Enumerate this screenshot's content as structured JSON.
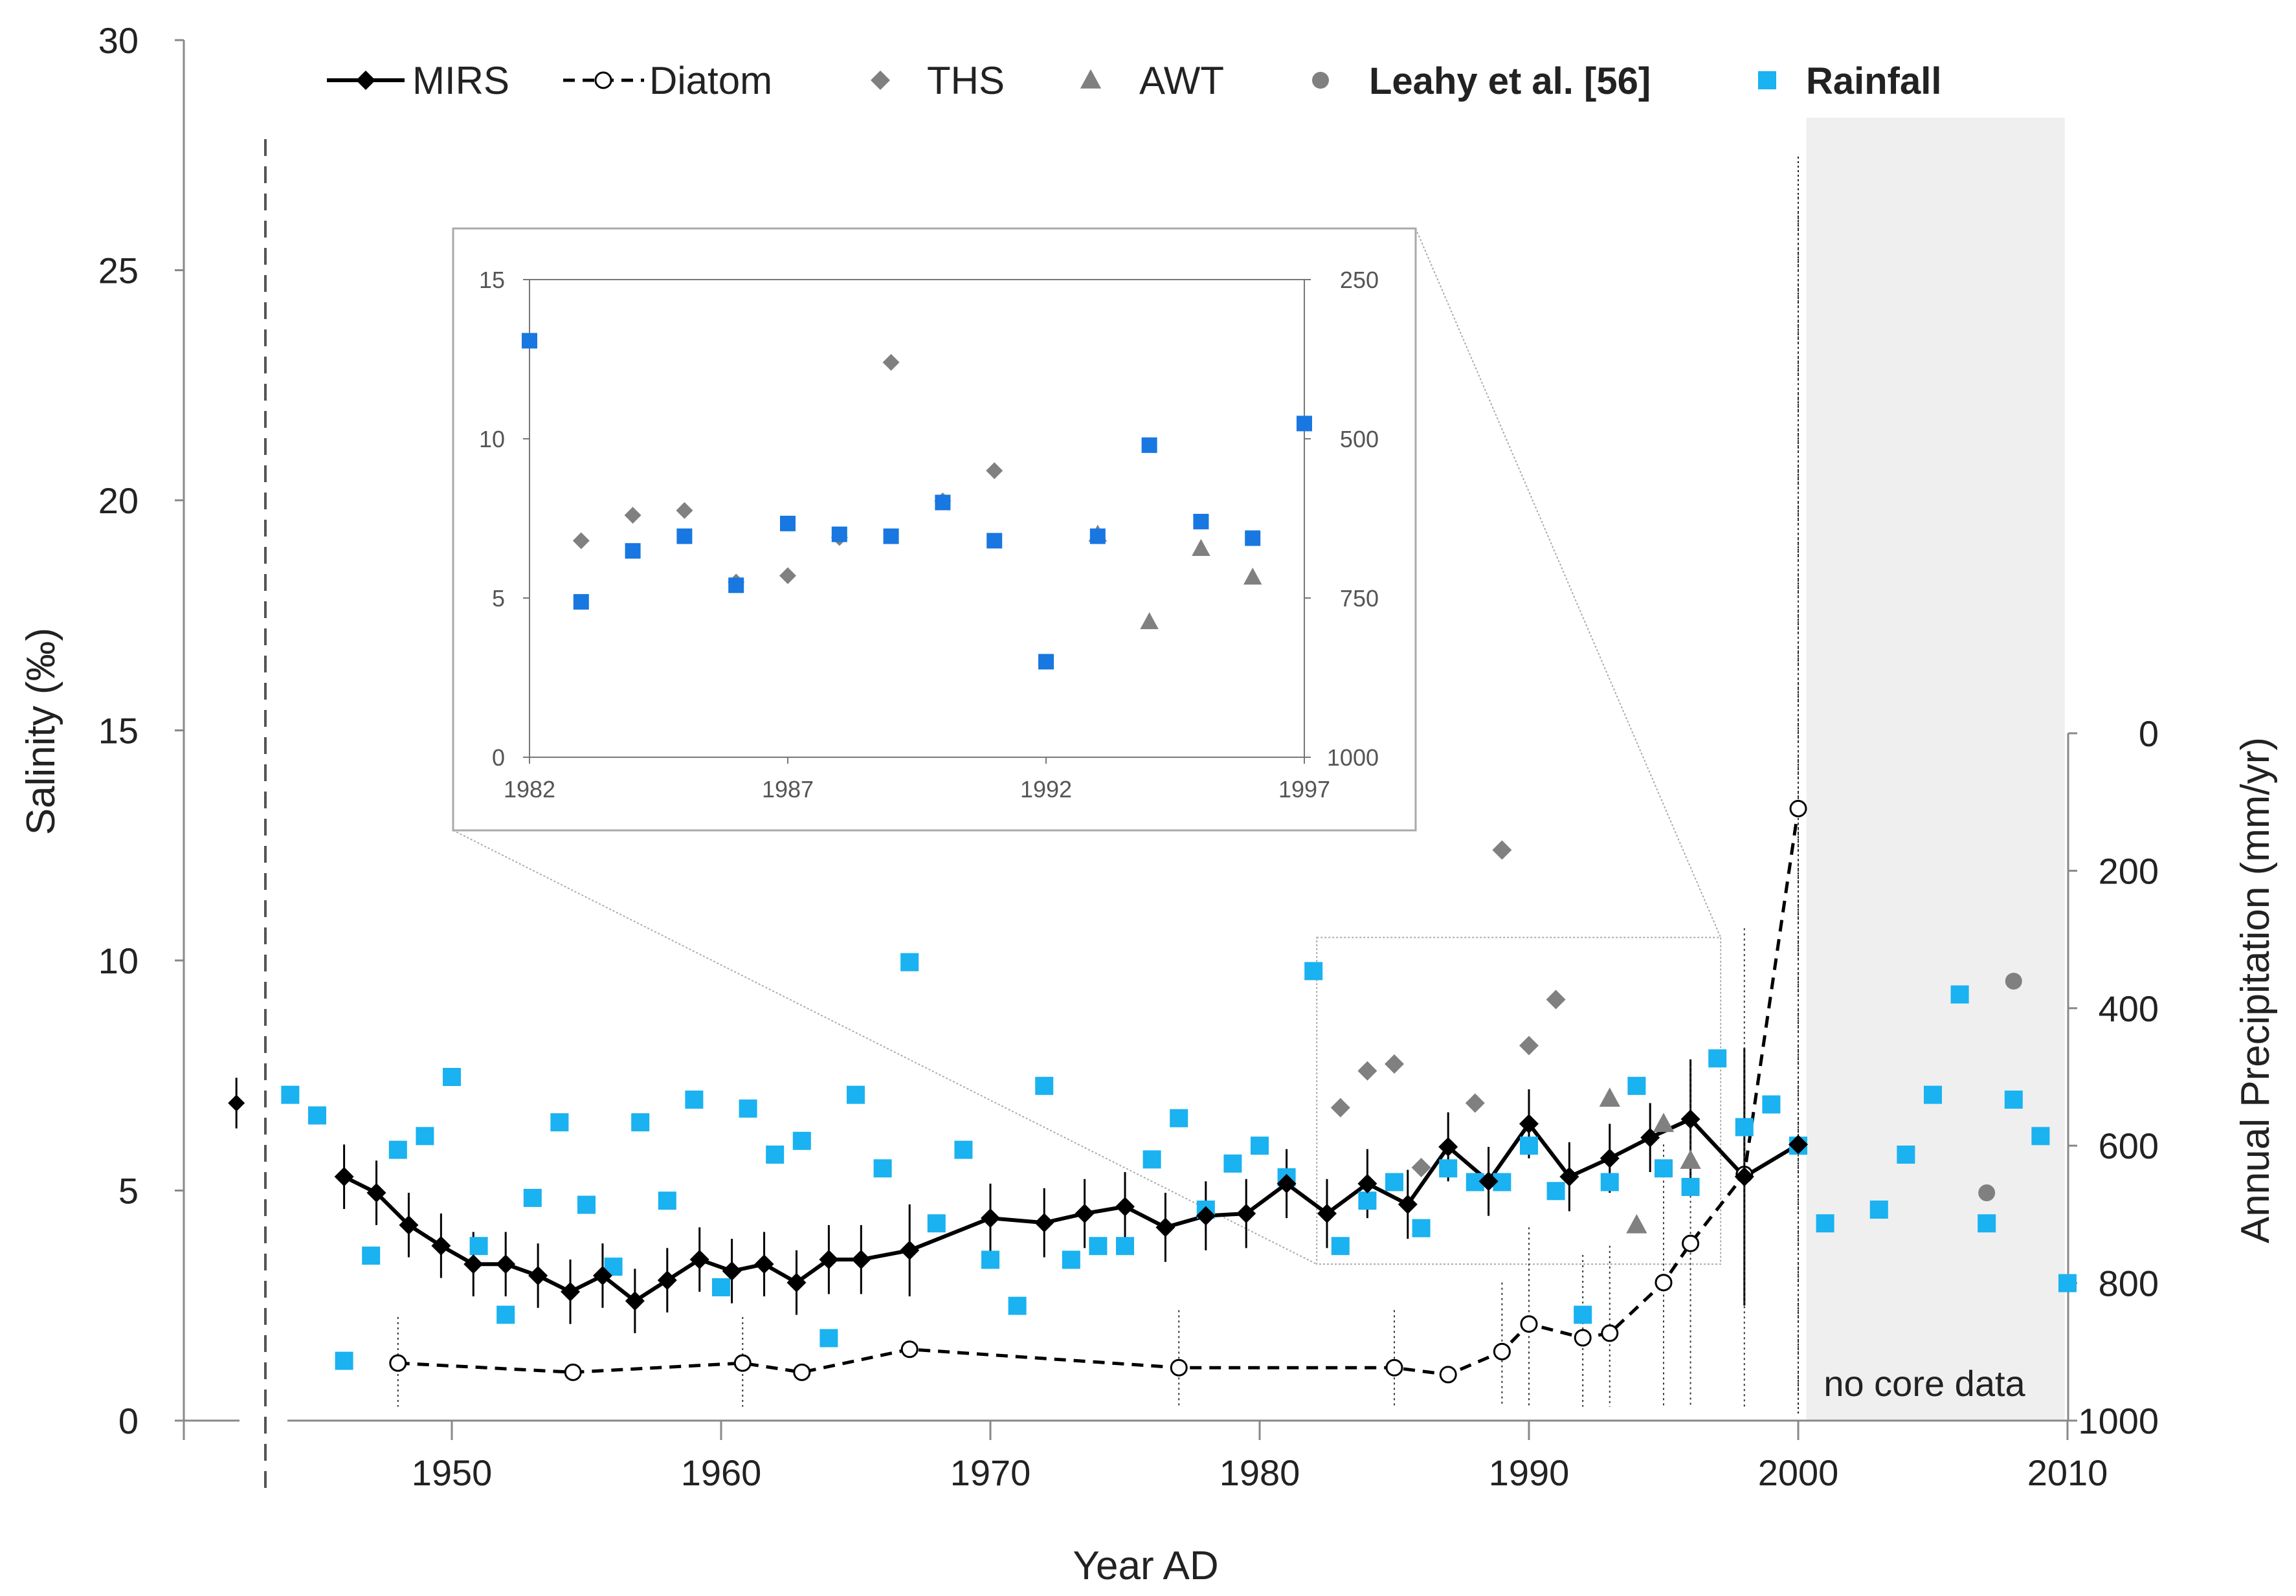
{
  "colors": {
    "mirs": "#000000",
    "diatom": "#000000",
    "ths": "#808080",
    "awt": "#808080",
    "leahy": "#808080",
    "rainfall_main": "#1ab2f0",
    "rainfall_inset": "#1877e0",
    "shade": "#efefef"
  },
  "chart_data": [
    {
      "id": "main",
      "type": "scatter",
      "title": "",
      "xlabel": "Year AD",
      "ylabel": "Salinity (‰)",
      "y2label": "Annual Precipitation (mm/yr)",
      "xlim": [
        1940,
        2010
      ],
      "ylim": [
        0,
        30
      ],
      "y2lim": [
        1000,
        0
      ],
      "x_ticks": [
        1950,
        1960,
        1970,
        1980,
        1990,
        2000,
        2010
      ],
      "y_ticks": [
        0,
        5,
        10,
        15,
        20,
        25,
        30
      ],
      "y2_ticks": [
        0,
        200,
        400,
        600,
        800,
        1000
      ],
      "annotation": "no core data",
      "shaded_region": [
        2000.3,
        2009.9
      ],
      "legend": [
        "MIRS",
        "Diatom",
        "THS",
        "AWT",
        "Leahy et al. [56]",
        "Rainfall"
      ],
      "series": [
        {
          "name": "MIRS",
          "marker": "diamond",
          "line": "solid",
          "values": [
            [
              1946,
              5.3
            ],
            [
              1947.2,
              4.95
            ],
            [
              1948.4,
              4.25
            ],
            [
              1949.6,
              3.8
            ],
            [
              1950.8,
              3.4
            ],
            [
              1952,
              3.4
            ],
            [
              1953.2,
              3.15
            ],
            [
              1954.4,
              2.8
            ],
            [
              1955.6,
              3.15
            ],
            [
              1956.8,
              2.6
            ],
            [
              1958,
              3.05
            ],
            [
              1959.2,
              3.5
            ],
            [
              1960.4,
              3.25
            ],
            [
              1961.6,
              3.4
            ],
            [
              1962.8,
              3.0
            ],
            [
              1964,
              3.5
            ],
            [
              1965.2,
              3.5
            ],
            [
              1967,
              3.7
            ],
            [
              1970,
              4.4
            ],
            [
              1972,
              4.3
            ],
            [
              1973.5,
              4.5
            ],
            [
              1975,
              4.65
            ],
            [
              1976.5,
              4.2
            ],
            [
              1978,
              4.45
            ],
            [
              1979.5,
              4.5
            ],
            [
              1981,
              5.15
            ],
            [
              1982.5,
              4.5
            ],
            [
              1984,
              5.15
            ],
            [
              1985.5,
              4.7
            ],
            [
              1987,
              5.95
            ],
            [
              1988.5,
              5.2
            ],
            [
              1990,
              6.45
            ],
            [
              1991.5,
              5.3
            ],
            [
              1993,
              5.7
            ],
            [
              1994.5,
              6.15
            ],
            [
              1996,
              6.55
            ],
            [
              1998,
              5.3
            ],
            [
              2000,
              6.0
            ]
          ],
          "isolated_point": [
            1942,
            6.9
          ],
          "error_bars": [
            [
              1946,
              0.7
            ],
            [
              1947.2,
              0.7
            ],
            [
              1948.4,
              0.7
            ],
            [
              1949.6,
              0.7
            ],
            [
              1950.8,
              0.7
            ],
            [
              1952,
              0.7
            ],
            [
              1953.2,
              0.7
            ],
            [
              1954.4,
              0.7
            ],
            [
              1955.6,
              0.7
            ],
            [
              1956.8,
              0.7
            ],
            [
              1958,
              0.7
            ],
            [
              1959.2,
              0.7
            ],
            [
              1960.4,
              0.7
            ],
            [
              1961.6,
              0.7
            ],
            [
              1962.8,
              0.7
            ],
            [
              1964,
              0.75
            ],
            [
              1965.2,
              0.75
            ],
            [
              1967,
              1.0
            ],
            [
              1970,
              0.75
            ],
            [
              1972,
              0.75
            ],
            [
              1973.5,
              0.75
            ],
            [
              1975,
              0.75
            ],
            [
              1976.5,
              0.75
            ],
            [
              1978,
              0.75
            ],
            [
              1979.5,
              0.75
            ],
            [
              1981,
              0.75
            ],
            [
              1982.5,
              0.75
            ],
            [
              1984,
              0.75
            ],
            [
              1985.5,
              0.75
            ],
            [
              1987,
              0.75
            ],
            [
              1988.5,
              0.75
            ],
            [
              1990,
              0.75
            ],
            [
              1991.5,
              0.75
            ],
            [
              1993,
              0.75
            ],
            [
              1994.5,
              0.75
            ],
            [
              1996,
              1.3
            ],
            [
              1998,
              2.8
            ],
            [
              2000,
              0.0
            ],
            [
              1942,
              0.55
            ]
          ]
        },
        {
          "name": "Diatom",
          "marker": "open-circle",
          "line": "dashed",
          "values": [
            [
              1948,
              1.25
            ],
            [
              1954.5,
              1.05
            ],
            [
              1960.8,
              1.25
            ],
            [
              1963,
              1.05
            ],
            [
              1967,
              1.55
            ],
            [
              1977,
              1.15
            ],
            [
              1985,
              1.15
            ],
            [
              1987,
              1.0
            ],
            [
              1989,
              1.5
            ],
            [
              1990,
              2.1
            ],
            [
              1992,
              1.8
            ],
            [
              1993,
              1.9
            ],
            [
              1995,
              3.0
            ],
            [
              1996,
              3.85
            ],
            [
              1998,
              5.35
            ],
            [
              2000,
              13.3
            ]
          ],
          "error_bars": [
            [
              1948,
              1.0
            ],
            [
              1954.5,
              0.0
            ],
            [
              1960.8,
              1.0
            ],
            [
              1963,
              0.0
            ],
            [
              1967,
              0.0
            ],
            [
              1977,
              1.25
            ],
            [
              1985,
              1.25
            ],
            [
              1987,
              0.0
            ],
            [
              1989,
              1.5
            ],
            [
              1990,
              2.1
            ],
            [
              1992,
              1.8
            ],
            [
              1993,
              1.9
            ],
            [
              1995,
              3.0
            ],
            [
              1996,
              3.85
            ],
            [
              1998,
              5.35
            ],
            [
              2000,
              13.3
            ]
          ]
        },
        {
          "name": "THS",
          "marker": "diamond",
          "values": [
            [
              1983,
              6.8
            ],
            [
              1984,
              7.6
            ],
            [
              1985,
              7.75
            ],
            [
              1986,
              5.5
            ],
            [
              1988,
              6.9
            ],
            [
              1989,
              12.4
            ],
            [
              1990,
              8.15
            ],
            [
              1991,
              9.15
            ]
          ]
        },
        {
          "name": "AWT",
          "marker": "triangle",
          "values": [
            [
              1993,
              7.0
            ],
            [
              1994,
              4.25
            ],
            [
              1995,
              6.45
            ],
            [
              1996,
              5.65
            ]
          ]
        },
        {
          "name": "Leahy et al. [56]",
          "marker": "circle",
          "values": [
            [
              2007,
              4.95
            ],
            [
              2008,
              9.55
            ]
          ]
        },
        {
          "name": "Rainfall",
          "marker": "square",
          "axis": "y2",
          "values": [
            [
              1944,
              526
            ],
            [
              1945,
              556
            ],
            [
              1946,
              913
            ],
            [
              1947,
              760
            ],
            [
              1948,
              606
            ],
            [
              1949,
              586
            ],
            [
              1950,
              500
            ],
            [
              1951,
              746
            ],
            [
              1952,
              846
            ],
            [
              1953,
              676
            ],
            [
              1954,
              566
            ],
            [
              1955,
              686
            ],
            [
              1956,
              776
            ],
            [
              1957,
              566
            ],
            [
              1958,
              680
            ],
            [
              1959,
              533
            ],
            [
              1960,
              806
            ],
            [
              1961,
              546
            ],
            [
              1962,
              613
            ],
            [
              1963,
              593
            ],
            [
              1964,
              880
            ],
            [
              1965,
              526
            ],
            [
              1966,
              633
            ],
            [
              1967,
              333
            ],
            [
              1968,
              713
            ],
            [
              1969,
              606
            ],
            [
              1970,
              766
            ],
            [
              1971,
              833
            ],
            [
              1972,
              513
            ],
            [
              1973,
              766
            ],
            [
              1974,
              746
            ],
            [
              1975,
              746
            ],
            [
              1976,
              620
            ],
            [
              1977,
              560
            ],
            [
              1978,
              693
            ],
            [
              1979,
              626
            ],
            [
              1980,
              600
            ],
            [
              1981,
              646
            ],
            [
              1982,
              346
            ],
            [
              1983,
              746
            ],
            [
              1984,
              680
            ],
            [
              1985,
              653
            ],
            [
              1986,
              720
            ],
            [
              1987,
              633
            ],
            [
              1988,
              653
            ],
            [
              1989,
              653
            ],
            [
              1990,
              600
            ],
            [
              1991,
              666
            ],
            [
              1992,
              846
            ],
            [
              1993,
              653
            ],
            [
              1994,
              513
            ],
            [
              1995,
              633
            ],
            [
              1996,
              660
            ],
            [
              1997,
              473
            ],
            [
              1998,
              573
            ],
            [
              1999,
              540
            ],
            [
              2000,
              600
            ],
            [
              2001,
              713
            ],
            [
              2003,
              693
            ],
            [
              2004,
              613
            ],
            [
              2005,
              526
            ],
            [
              2006,
              380
            ],
            [
              2007,
              713
            ],
            [
              2008,
              533
            ],
            [
              2009,
              586
            ],
            [
              2010,
              800
            ]
          ]
        }
      ],
      "zoom_box": {
        "x": [
          1982,
          1997
        ],
        "y": [
          3.4,
          10.5
        ]
      }
    },
    {
      "id": "inset",
      "type": "scatter",
      "xlim": [
        1982,
        1997
      ],
      "ylim": [
        0,
        15
      ],
      "y2lim": [
        1000,
        250
      ],
      "x_ticks": [
        1982,
        1987,
        1992,
        1997
      ],
      "y_ticks": [
        0,
        5,
        10,
        15
      ],
      "y2_ticks": [
        250,
        500,
        750,
        1000
      ],
      "series": [
        {
          "name": "THS",
          "marker": "diamond",
          "values": [
            [
              1983,
              6.8
            ],
            [
              1984,
              7.6
            ],
            [
              1985,
              7.75
            ],
            [
              1986,
              5.5
            ],
            [
              1987,
              5.7
            ],
            [
              1988,
              6.9
            ],
            [
              1989,
              12.4
            ],
            [
              1990,
              8.05
            ],
            [
              1991,
              9.0
            ]
          ]
        },
        {
          "name": "AWT",
          "marker": "triangle",
          "values": [
            [
              1993,
              7.0
            ],
            [
              1994,
              4.25
            ],
            [
              1995,
              6.55
            ],
            [
              1996,
              5.65
            ]
          ]
        },
        {
          "name": "Rainfall",
          "marker": "square",
          "axis": "y2",
          "values": [
            [
              1982,
              346
            ],
            [
              1983,
              756
            ],
            [
              1984,
              676
            ],
            [
              1985,
              653
            ],
            [
              1986,
              730
            ],
            [
              1987,
              633
            ],
            [
              1988,
              650
            ],
            [
              1989,
              653
            ],
            [
              1990,
              600
            ],
            [
              1991,
              660
            ],
            [
              1992,
              850
            ],
            [
              1993,
              653
            ],
            [
              1994,
              510
            ],
            [
              1995,
              630
            ],
            [
              1996,
              656
            ],
            [
              1997,
              476
            ]
          ]
        }
      ]
    }
  ]
}
